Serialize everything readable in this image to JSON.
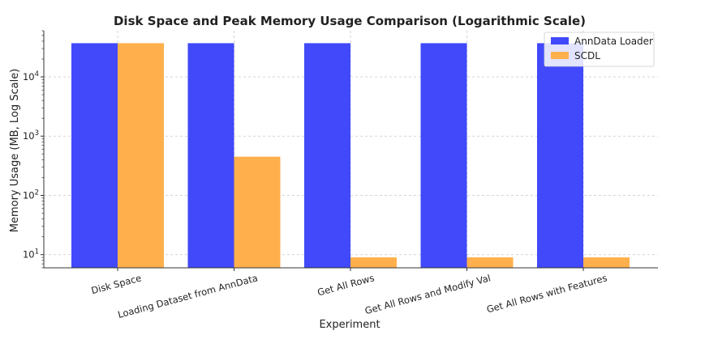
{
  "chart_data": {
    "type": "bar",
    "title": "Disk Space and Peak Memory Usage Comparison (Logarithmic Scale)",
    "xlabel": "Experiment",
    "ylabel": "Memory Usage (MB, Log Scale)",
    "yscale": "log",
    "ylim": [
      6,
      60000
    ],
    "yticks": [
      {
        "base": "10",
        "exp": "1"
      },
      {
        "base": "10",
        "exp": "2"
      },
      {
        "base": "10",
        "exp": "3"
      },
      {
        "base": "10",
        "exp": "4"
      }
    ],
    "grid": true,
    "legend_position": "top-right",
    "categories": [
      "Disk Space",
      "Loading Dataset from AnnData",
      "Get All Rows",
      "Get All Rows and Modify Val",
      "Get All Rows with Features"
    ],
    "series": [
      {
        "name": "AnnData Loader",
        "color": "#4149fa",
        "values": [
          37000,
          37000,
          37000,
          37000,
          37000
        ]
      },
      {
        "name": "SCDL",
        "color": "#ffb04c",
        "values": [
          37000,
          450,
          9,
          9,
          9
        ]
      }
    ]
  }
}
